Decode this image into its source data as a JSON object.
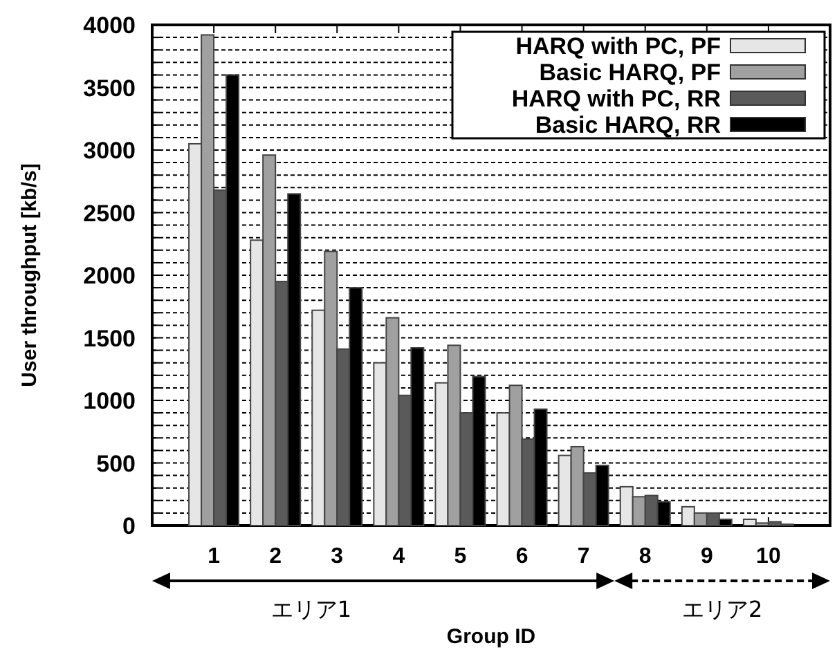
{
  "chart_data": {
    "type": "bar",
    "xlabel": "Group ID",
    "ylabel": "User throughput [kb/s]",
    "categories": [
      "1",
      "2",
      "3",
      "4",
      "5",
      "6",
      "7",
      "8",
      "9",
      "10"
    ],
    "series": [
      {
        "name": "HARQ with PC, PF",
        "color": "#e6e6e6",
        "values": [
          3050,
          2280,
          1720,
          1300,
          1140,
          900,
          560,
          310,
          150,
          50
        ]
      },
      {
        "name": "Basic HARQ, PF",
        "color": "#a0a0a0",
        "values": [
          3920,
          2960,
          2190,
          1660,
          1440,
          1120,
          630,
          230,
          100,
          20
        ]
      },
      {
        "name": "HARQ with PC, RR",
        "color": "#5a5a5a",
        "values": [
          2680,
          1950,
          1410,
          1040,
          900,
          690,
          420,
          240,
          100,
          30
        ]
      },
      {
        "name": "Basic HARQ, RR",
        "color": "#000000",
        "values": [
          3600,
          2650,
          1900,
          1420,
          1190,
          930,
          480,
          190,
          50,
          10
        ]
      }
    ],
    "ylim": [
      0,
      4000
    ],
    "yticks": [
      0,
      {
        "value": 100,
        "label": null
      },
      {
        "value": 200,
        "label": null
      },
      {
        "value": 300,
        "label": null
      },
      {
        "value": 400,
        "label": null
      },
      500,
      {
        "value": 600,
        "label": null
      },
      {
        "value": 700,
        "label": null
      },
      {
        "value": 800,
        "label": null
      },
      {
        "value": 900,
        "label": null
      },
      1000,
      {
        "value": 1100,
        "label": null
      },
      {
        "value": 1200,
        "label": null
      },
      {
        "value": 1300,
        "label": null
      },
      {
        "value": 1400,
        "label": null
      },
      1500,
      {
        "value": 1600,
        "label": null
      },
      {
        "value": 1700,
        "label": null
      },
      {
        "value": 1800,
        "label": null
      },
      {
        "value": 1900,
        "label": null
      },
      2000,
      {
        "value": 2100,
        "label": null
      },
      {
        "value": 2200,
        "label": null
      },
      {
        "value": 2300,
        "label": null
      },
      {
        "value": 2400,
        "label": null
      },
      2500,
      {
        "value": 2600,
        "label": null
      },
      {
        "value": 2700,
        "label": null
      },
      {
        "value": 2800,
        "label": null
      },
      {
        "value": 2900,
        "label": null
      },
      3000,
      {
        "value": 3100,
        "label": null
      },
      {
        "value": 3200,
        "label": null
      },
      {
        "value": 3300,
        "label": null
      },
      {
        "value": 3400,
        "label": null
      },
      3500,
      {
        "value": 3600,
        "label": null
      },
      {
        "value": 3700,
        "label": null
      },
      {
        "value": 3800,
        "label": null
      },
      {
        "value": 3900,
        "label": null
      },
      4000
    ],
    "grid": "y",
    "legend": "top right",
    "annotations": [
      "エリア1",
      "エリア2"
    ]
  }
}
